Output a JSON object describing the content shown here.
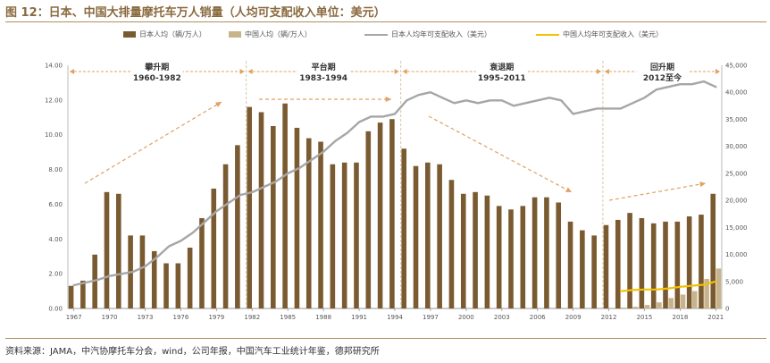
{
  "title": "图 12：日本、中国大排量摩托车万人销量（人均可支配收入单位：美元）",
  "source": "资料来源：JAMA，中汽协摩托车分会，wind，公司年报，中国汽车工业统计年鉴，德邦研究所",
  "colors": {
    "japan_bar": "#7a5a30",
    "china_bar": "#c8b48c",
    "japan_income": "#a6a6a6",
    "china_income": "#f2c200",
    "annotation": "#e0a060",
    "divider": "#d8c8a8"
  },
  "chart_data": {
    "type": "bar",
    "legend": [
      {
        "name": "日本人均（辆/万人）",
        "kind": "bar",
        "color": "#7a5a30"
      },
      {
        "name": "中国人均（辆/万人）",
        "kind": "bar",
        "color": "#c8b48c"
      },
      {
        "name": "日本人均年可支配收入（美元）",
        "kind": "line",
        "color": "#a6a6a6"
      },
      {
        "name": "中国人均年可支配收入（美元）",
        "kind": "line",
        "color": "#f2c200"
      }
    ],
    "years": [
      1967,
      1968,
      1969,
      1970,
      1971,
      1972,
      1973,
      1974,
      1975,
      1976,
      1977,
      1978,
      1979,
      1980,
      1981,
      1982,
      1983,
      1984,
      1985,
      1986,
      1987,
      1988,
      1989,
      1990,
      1991,
      1992,
      1993,
      1994,
      1995,
      1996,
      1997,
      1998,
      1999,
      2000,
      2001,
      2002,
      2003,
      2004,
      2005,
      2006,
      2007,
      2008,
      2009,
      2010,
      2011,
      2012,
      2013,
      2014,
      2015,
      2016,
      2017,
      2018,
      2019,
      2020,
      2021
    ],
    "x_tick_labels": [
      "1967",
      "1970",
      "1973",
      "1976",
      "1979",
      "1982",
      "1985",
      "1988",
      "1991",
      "1994",
      "1997",
      "2000",
      "2003",
      "2006",
      "2009",
      "2012",
      "2015",
      "2018",
      "2021"
    ],
    "x_tick_years": [
      1967,
      1970,
      1973,
      1976,
      1979,
      1982,
      1985,
      1988,
      1991,
      1994,
      1997,
      2000,
      2003,
      2006,
      2009,
      2012,
      2015,
      2018,
      2021
    ],
    "series": [
      {
        "name": "日本人均（辆/万人）",
        "axis": "left",
        "type": "bar",
        "values": [
          1.3,
          1.6,
          3.1,
          6.7,
          6.6,
          4.2,
          4.2,
          3.3,
          2.6,
          2.6,
          3.5,
          5.2,
          6.9,
          8.3,
          9.4,
          11.6,
          11.3,
          10.5,
          11.8,
          10.4,
          9.8,
          9.6,
          8.3,
          8.4,
          8.4,
          10.2,
          10.7,
          10.9,
          9.2,
          8.2,
          8.4,
          8.3,
          7.4,
          6.6,
          6.7,
          6.5,
          5.9,
          5.7,
          5.9,
          6.4,
          6.4,
          6.1,
          5.0,
          4.5,
          4.2,
          4.8,
          5.1,
          5.5,
          5.2,
          4.9,
          5.0,
          5.0,
          5.3,
          5.4,
          6.6
        ]
      },
      {
        "name": "中国人均（辆/万人）",
        "axis": "left",
        "type": "bar",
        "values": [
          null,
          null,
          null,
          null,
          null,
          null,
          null,
          null,
          null,
          null,
          null,
          null,
          null,
          null,
          null,
          null,
          null,
          null,
          null,
          null,
          null,
          null,
          null,
          null,
          null,
          null,
          null,
          null,
          null,
          null,
          null,
          null,
          null,
          null,
          null,
          null,
          null,
          null,
          null,
          null,
          null,
          null,
          null,
          null,
          null,
          null,
          0.05,
          0.1,
          0.2,
          0.35,
          0.6,
          0.8,
          1.0,
          1.7,
          2.3
        ]
      },
      {
        "name": "日本人均年可支配收入（美元）",
        "axis": "right",
        "type": "line",
        "values": [
          4300,
          4800,
          5300,
          6000,
          6400,
          6800,
          7800,
          9500,
          11500,
          12500,
          14000,
          16000,
          18000,
          19500,
          21000,
          21500,
          22500,
          23500,
          25000,
          26000,
          27500,
          29000,
          31000,
          32500,
          34500,
          35500,
          35500,
          36000,
          38500,
          39500,
          40000,
          39000,
          38000,
          38500,
          38000,
          38500,
          38500,
          37500,
          38000,
          38500,
          39000,
          38500,
          36000,
          36500,
          37000,
          37000,
          37000,
          38000,
          39000,
          40500,
          41000,
          41500,
          41500,
          42000,
          41000
        ]
      },
      {
        "name": "中国人均年可支配收入（美元）",
        "axis": "right",
        "type": "line",
        "values": [
          null,
          null,
          null,
          null,
          null,
          null,
          null,
          null,
          null,
          null,
          null,
          null,
          null,
          null,
          null,
          null,
          null,
          null,
          null,
          null,
          null,
          null,
          null,
          null,
          null,
          null,
          null,
          null,
          null,
          null,
          null,
          null,
          null,
          null,
          null,
          null,
          null,
          null,
          null,
          null,
          null,
          null,
          null,
          null,
          null,
          null,
          3200,
          3400,
          3500,
          3500,
          3700,
          4000,
          4200,
          4400,
          5000
        ]
      }
    ],
    "left_axis": {
      "min": 0,
      "max": 14,
      "ticks": [
        "0.00",
        "2.00",
        "4.00",
        "6.00",
        "8.00",
        "10.00",
        "12.00",
        "14.00"
      ]
    },
    "right_axis": {
      "min": 0,
      "max": 45000,
      "ticks": [
        "0",
        "5,000",
        "10,000",
        "15,000",
        "20,000",
        "25,000",
        "30,000",
        "35,000",
        "40,000",
        "45,000"
      ]
    },
    "phases": [
      {
        "name": "攀升期",
        "period": "1960-1982",
        "start": 1967,
        "end": 1981
      },
      {
        "name": "平台期",
        "period": "1983-1994",
        "start": 1982,
        "end": 1994
      },
      {
        "name": "衰退期",
        "period": "1995-2011",
        "start": 1995,
        "end": 2011
      },
      {
        "name": "回升期",
        "period": "2012至今",
        "start": 2012,
        "end": 2021
      }
    ]
  }
}
